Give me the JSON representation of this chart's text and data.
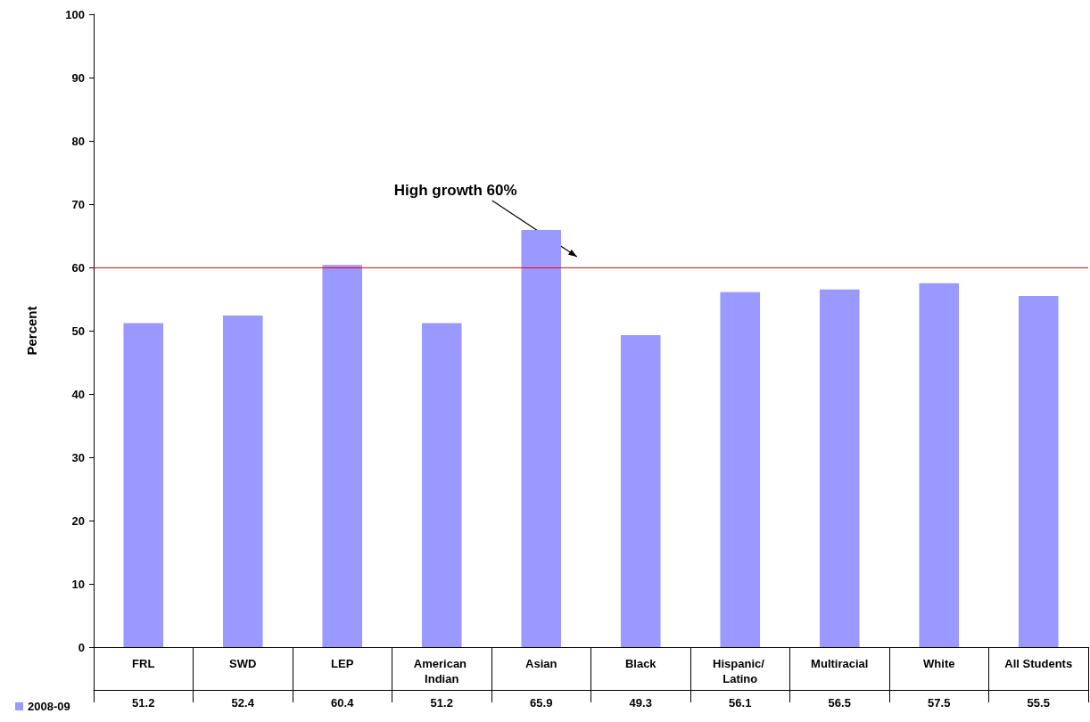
{
  "chart_data": {
    "type": "bar",
    "ylabel": "Percent",
    "categories": [
      "FRL",
      "SWD",
      "LEP",
      "American Indian",
      "Asian",
      "Black",
      "Hispanic/ Latino",
      "Multiracial",
      "White",
      "All Students"
    ],
    "series": [
      {
        "name": "2008-09",
        "color": "#9999ff",
        "values": [
          51.2,
          52.4,
          60.4,
          51.2,
          65.9,
          49.3,
          56.1,
          56.5,
          57.5,
          55.5
        ]
      }
    ],
    "ylim": [
      0,
      100
    ],
    "yticks": [
      0,
      10,
      20,
      30,
      40,
      50,
      60,
      70,
      80,
      90,
      100
    ],
    "ref_lines": [
      {
        "axis": "y",
        "value": 60,
        "color": "#ff0000"
      }
    ],
    "annotations": [
      "High growth 60%"
    ],
    "data_labels": true,
    "legend": "bottom left",
    "grid": false
  }
}
